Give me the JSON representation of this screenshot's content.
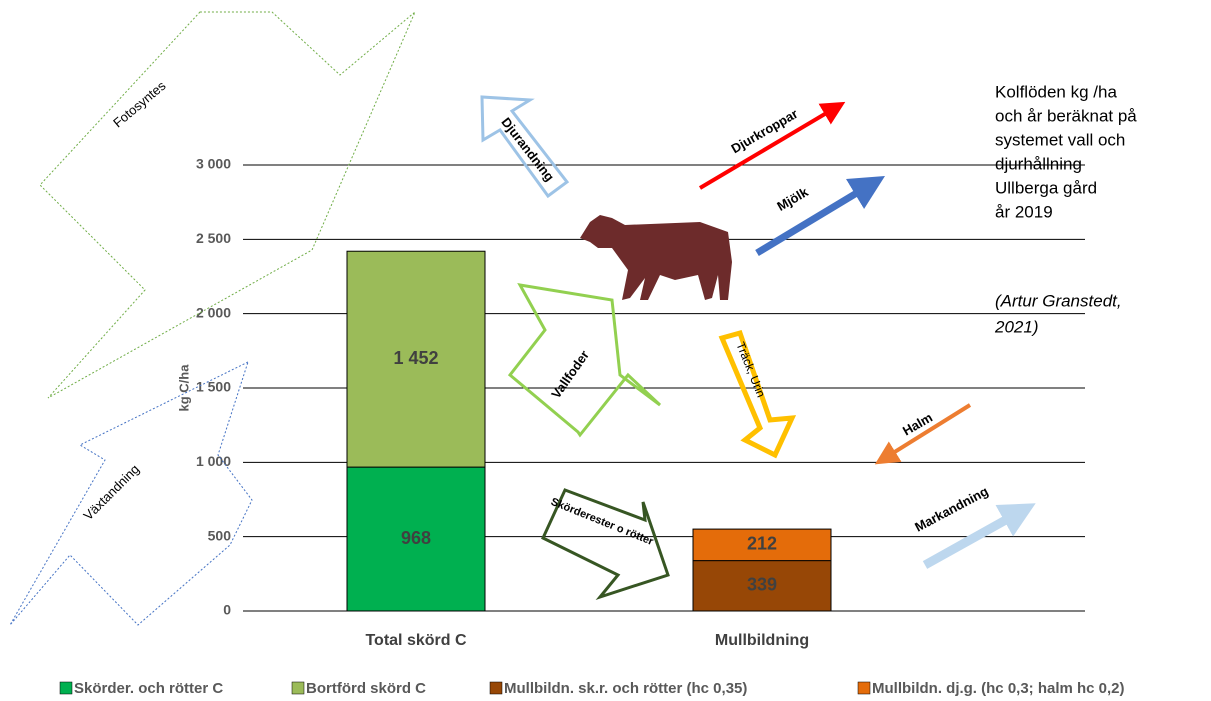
{
  "chart_data": {
    "type": "bar",
    "stacked": true,
    "categories": [
      "Total skörd C",
      "Mullbildning"
    ],
    "series": [
      {
        "name": "Skörder. och rötter C",
        "color": "#00b050",
        "values": [
          968,
          null
        ]
      },
      {
        "name": "Bortförd skörd C",
        "color": "#9bbb59",
        "values": [
          1452,
          null
        ],
        "value_labels": [
          "1 452",
          null
        ]
      },
      {
        "name": "Mullbildn. sk.r. och rötter (hc 0,35)",
        "color": "#974706",
        "values": [
          null,
          339
        ]
      },
      {
        "name": "Mullbildn. dj.g. (hc 0,3; halm hc 0,2)",
        "color": "#e46c0a",
        "values": [
          null,
          212
        ]
      }
    ],
    "ylabel": "kg C/ha",
    "ylim": [
      0,
      3000
    ],
    "yticks": [
      0,
      500,
      {
        "value": 1000,
        "label": "1 000"
      },
      {
        "value": 1500,
        "label": "1 500"
      },
      {
        "value": 2000,
        "label": "2 000"
      },
      {
        "value": 2500,
        "label": "2 500"
      },
      {
        "value": 3000,
        "label": "3 000"
      }
    ],
    "grid": true,
    "legend": "bottom",
    "annotations": [
      "Fotosyntes",
      "Växtandning",
      "Djurandning",
      "Djurkroppar",
      "Mjölk",
      "Vallfoder",
      "Träck, Urin",
      "Halm",
      "Markandning",
      "Skörderester o rötter"
    ],
    "note": [
      "Kolflöden kg /ha",
      "och år beräknat på",
      "systemet vall och",
      "djurhållning",
      "Ullberga gård",
      "år 2019"
    ],
    "source": [
      "(Artur Granstedt,",
      "2021)"
    ]
  }
}
